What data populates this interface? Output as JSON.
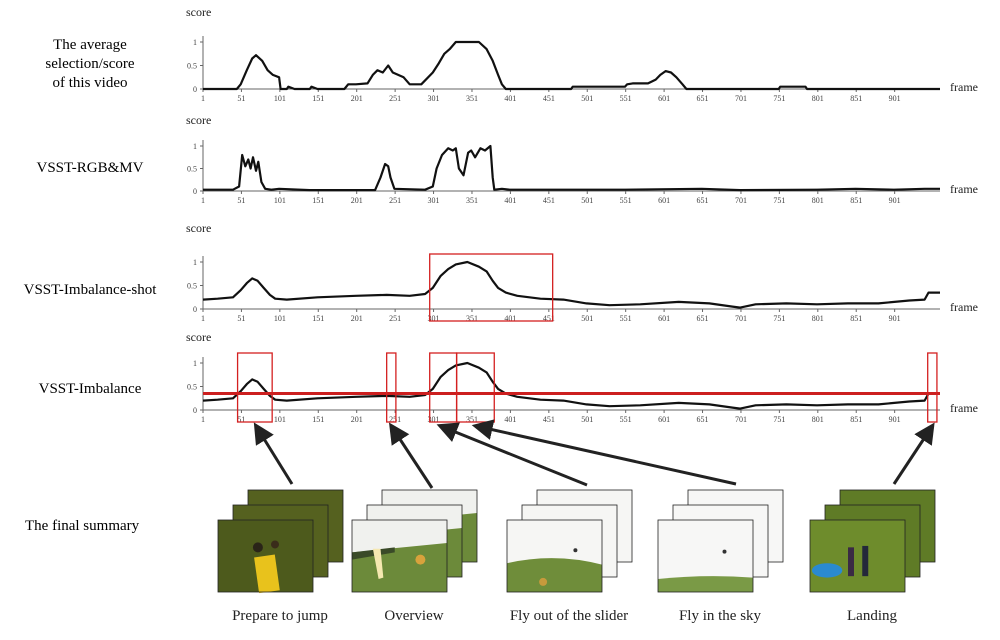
{
  "figure": {
    "summary_label": "The final summary",
    "x_axis_label": "frame",
    "y_axis_label": "score"
  },
  "chart_data": [
    {
      "type": "line",
      "row_label_lines": [
        "The average",
        "selection/score",
        "of this video"
      ],
      "ylabel": "score",
      "xlabel": "frame",
      "xlim": [
        1,
        960
      ],
      "ylim": [
        0,
        1
      ],
      "x_ticks": [
        1,
        51,
        101,
        151,
        201,
        251,
        301,
        351,
        401,
        451,
        501,
        551,
        601,
        651,
        701,
        751,
        801,
        851,
        901
      ],
      "y_ticks": [
        "0",
        "0.5",
        "1"
      ],
      "series": [
        {
          "x": [
            1,
            45,
            50,
            58,
            65,
            70,
            78,
            85,
            92,
            100,
            102,
            110,
            112,
            120,
            140,
            142,
            150,
            175,
            185,
            190,
            200,
            215,
            222,
            228,
            235,
            242,
            248,
            255,
            262,
            270,
            285,
            300,
            308,
            315,
            322,
            330,
            345,
            360,
            370,
            378,
            385,
            390,
            395,
            480,
            482,
            490,
            500,
            550,
            553,
            560,
            580,
            590,
            596,
            603,
            610,
            617,
            625,
            630,
            700,
            750,
            752,
            765,
            785,
            787,
            800,
            830,
            960
          ],
          "y": [
            0,
            0,
            0.1,
            0.4,
            0.65,
            0.72,
            0.6,
            0.4,
            0.3,
            0.25,
            0,
            0,
            0.05,
            0,
            0,
            0.05,
            0,
            0,
            0,
            0.1,
            0.1,
            0.12,
            0.3,
            0.4,
            0.35,
            0.5,
            0.35,
            0.3,
            0.25,
            0.1,
            0.1,
            0.35,
            0.55,
            0.75,
            0.85,
            1,
            1,
            1,
            0.85,
            0.6,
            0.3,
            0.1,
            0,
            0,
            0.05,
            0.05,
            0.05,
            0.05,
            0.1,
            0.12,
            0.12,
            0.2,
            0.3,
            0.38,
            0.35,
            0.25,
            0.1,
            0,
            0,
            0,
            0.05,
            0.05,
            0.05,
            0,
            0,
            0,
            0
          ]
        }
      ]
    },
    {
      "type": "line",
      "row_label_lines": [
        "VSST-RGB&MV"
      ],
      "ylabel": "score",
      "xlabel": "frame",
      "xlim": [
        1,
        960
      ],
      "ylim": [
        0,
        1
      ],
      "x_ticks": [
        1,
        51,
        101,
        151,
        201,
        251,
        301,
        351,
        401,
        451,
        501,
        551,
        601,
        651,
        701,
        751,
        801,
        851,
        901
      ],
      "y_ticks": [
        "0",
        "0.5",
        "1"
      ],
      "series": [
        {
          "x": [
            1,
            40,
            48,
            52,
            56,
            60,
            63,
            66,
            70,
            73,
            77,
            82,
            90,
            100,
            140,
            225,
            232,
            238,
            242,
            245,
            250,
            290,
            300,
            305,
            312,
            320,
            326,
            330,
            334,
            340,
            346,
            350,
            355,
            362,
            368,
            375,
            378,
            380,
            390,
            400,
            550,
            650,
            700,
            800,
            850,
            900,
            940,
            960
          ],
          "y": [
            0.03,
            0.03,
            0.1,
            0.8,
            0.55,
            0.7,
            0.5,
            0.75,
            0.45,
            0.65,
            0.2,
            0.05,
            0.03,
            0.05,
            0.02,
            0.02,
            0.3,
            0.6,
            0.55,
            0.3,
            0.05,
            0.03,
            0.1,
            0.5,
            0.8,
            0.95,
            0.9,
            0.95,
            0.5,
            0.35,
            0.85,
            0.9,
            0.75,
            0.95,
            0.9,
            1,
            0.3,
            0.03,
            0.05,
            0.03,
            0.03,
            0.05,
            0.02,
            0.03,
            0.05,
            0.03,
            0.05,
            0.05
          ]
        }
      ]
    },
    {
      "type": "line",
      "row_label_lines": [
        "VSST-Imbalance-shot"
      ],
      "ylabel": "score",
      "xlabel": "frame",
      "xlim": [
        1,
        960
      ],
      "ylim": [
        0,
        1
      ],
      "x_ticks": [
        1,
        51,
        101,
        151,
        201,
        251,
        301,
        351,
        401,
        451,
        501,
        551,
        601,
        651,
        701,
        751,
        801,
        851,
        901
      ],
      "y_ticks": [
        "0",
        "0.5",
        "1"
      ],
      "series": [
        {
          "x": [
            1,
            20,
            40,
            50,
            58,
            65,
            72,
            80,
            88,
            95,
            110,
            150,
            200,
            240,
            270,
            290,
            300,
            310,
            320,
            330,
            345,
            360,
            370,
            378,
            385,
            395,
            410,
            440,
            470,
            500,
            530,
            570,
            620,
            660,
            690,
            700,
            720,
            760,
            800,
            840,
            880,
            920,
            940,
            945,
            960
          ],
          "y": [
            0.2,
            0.22,
            0.25,
            0.4,
            0.55,
            0.65,
            0.6,
            0.45,
            0.3,
            0.22,
            0.2,
            0.25,
            0.28,
            0.3,
            0.28,
            0.32,
            0.45,
            0.7,
            0.85,
            0.95,
            1,
            0.9,
            0.8,
            0.6,
            0.45,
            0.35,
            0.28,
            0.22,
            0.2,
            0.12,
            0.08,
            0.1,
            0.15,
            0.12,
            0.05,
            0.03,
            0.1,
            0.12,
            0.1,
            0.12,
            0.12,
            0.18,
            0.2,
            0.35,
            0.35
          ]
        }
      ]
    },
    {
      "type": "line",
      "row_label_lines": [
        "VSST-Imbalance"
      ],
      "ylabel": "score",
      "xlabel": "frame",
      "xlim": [
        1,
        960
      ],
      "ylim": [
        0,
        1
      ],
      "x_ticks": [
        1,
        51,
        101,
        151,
        201,
        251,
        301,
        351,
        401,
        451,
        501,
        551,
        601,
        651,
        701,
        751,
        801,
        851,
        901
      ],
      "y_ticks": [
        "0",
        "0.5",
        "1"
      ],
      "threshold": 0.35,
      "series": [
        {
          "x": [
            1,
            20,
            40,
            50,
            58,
            65,
            72,
            80,
            88,
            95,
            110,
            150,
            200,
            240,
            270,
            290,
            300,
            310,
            320,
            330,
            345,
            360,
            370,
            378,
            385,
            395,
            410,
            440,
            470,
            500,
            530,
            570,
            620,
            660,
            690,
            700,
            720,
            760,
            800,
            840,
            880,
            920,
            940,
            945,
            960
          ],
          "y": [
            0.2,
            0.22,
            0.25,
            0.4,
            0.55,
            0.65,
            0.6,
            0.45,
            0.3,
            0.22,
            0.2,
            0.25,
            0.28,
            0.3,
            0.28,
            0.32,
            0.45,
            0.7,
            0.85,
            0.95,
            1,
            0.9,
            0.8,
            0.6,
            0.45,
            0.35,
            0.28,
            0.22,
            0.2,
            0.12,
            0.08,
            0.1,
            0.15,
            0.12,
            0.05,
            0.03,
            0.1,
            0.12,
            0.1,
            0.12,
            0.12,
            0.18,
            0.2,
            0.35,
            0.35
          ]
        }
      ],
      "highlight_ranges": [
        [
          46,
          91
        ],
        [
          240,
          252
        ],
        [
          296,
          331
        ],
        [
          331,
          380
        ],
        [
          944,
          956
        ]
      ]
    }
  ],
  "highlight_box_color": "#d42020",
  "threshold_color": "#cc1f1f",
  "line_color": "#111111",
  "summary": [
    {
      "caption": "Prepare to jump",
      "scene": "ground",
      "arrow_to_frame": 70
    },
    {
      "caption": "Overview",
      "scene": "slider",
      "arrow_to_frame": 246
    },
    {
      "caption": "Fly out of the slider",
      "scene": "fly-out",
      "arrow_to_frame": 310
    },
    {
      "caption": "Fly in the sky",
      "scene": "sky",
      "arrow_to_frame": 356
    },
    {
      "caption": "Landing",
      "scene": "landing",
      "arrow_to_frame": 950
    }
  ]
}
